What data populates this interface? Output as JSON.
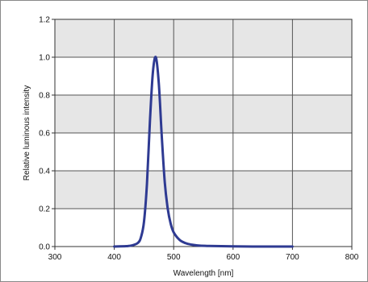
{
  "chart_data": {
    "type": "line",
    "title": "",
    "xlabel": "Wavelength [nm]",
    "ylabel": "Relative luminous intensity",
    "xlim": [
      300,
      800
    ],
    "ylim": [
      0,
      1.2
    ],
    "xticks": [
      "300",
      "400",
      "500",
      "600",
      "700",
      "800"
    ],
    "yticks": [
      "0.0",
      "0.2",
      "0.4",
      "0.6",
      "0.8",
      "1.0",
      "1.2"
    ],
    "grid": true,
    "band_fill": "#e6e6e6",
    "plot_background": "#ffffff",
    "series": [
      {
        "color": "#2e3a92",
        "x": [
          400,
          420,
          430,
          440,
          445,
          450,
          455,
          460,
          465,
          470,
          475,
          480,
          485,
          490,
          495,
          500,
          510,
          520,
          530,
          540,
          560,
          600,
          650,
          700
        ],
        "y": [
          0.0,
          0.002,
          0.006,
          0.02,
          0.05,
          0.13,
          0.33,
          0.66,
          0.92,
          1.0,
          0.86,
          0.58,
          0.34,
          0.2,
          0.12,
          0.075,
          0.035,
          0.018,
          0.01,
          0.006,
          0.003,
          0.001,
          0.0,
          0.0
        ]
      }
    ]
  }
}
